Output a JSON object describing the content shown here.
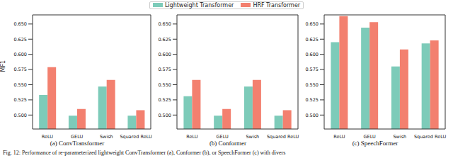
{
  "chart_data": [
    {
      "type": "bar",
      "title": "(a) ConvTransformer",
      "y_label": "MF1",
      "legend": "top",
      "categories": [
        "ReLU",
        "GELU",
        "Swish",
        "Squared ReLU"
      ],
      "series": [
        {
          "name": "Lightweight Transformer",
          "color": "#7dcbb9",
          "values": [
            0.533,
            0.499,
            0.547,
            0.499
          ]
        },
        {
          "name": "HRF Transformer",
          "color": "#f3806f",
          "values": [
            0.579,
            0.51,
            0.558,
            0.508
          ]
        }
      ],
      "ylim": [
        0.477,
        0.665
      ],
      "yticks": [
        {
          "value": 0.5,
          "label": "0.500"
        },
        {
          "value": 0.525,
          "label": "0.525"
        },
        {
          "value": 0.55,
          "label": "0.550"
        },
        {
          "value": 0.575,
          "label": "0.575"
        },
        {
          "value": 0.6,
          "label": "0.600"
        },
        {
          "value": 0.625,
          "label": "0.625"
        },
        {
          "value": 0.65,
          "label": "0.650"
        }
      ]
    },
    {
      "type": "bar",
      "title": "(b) Conformer",
      "categories": [
        "ReLU",
        "GELU",
        "Swish",
        "Squared ReLU"
      ],
      "series": [
        {
          "name": "Lightweight Transformer",
          "color": "#7dcbb9",
          "values": [
            0.531,
            0.499,
            0.547,
            0.499
          ]
        },
        {
          "name": "HRF Transformer",
          "color": "#f3806f",
          "values": [
            0.558,
            0.51,
            0.558,
            0.508
          ]
        }
      ],
      "ylim": [
        0.477,
        0.665
      ],
      "yticks": [
        {
          "value": 0.5,
          "label": "0.500"
        },
        {
          "value": 0.525,
          "label": "0.525"
        },
        {
          "value": 0.55,
          "label": "0.550"
        },
        {
          "value": 0.575,
          "label": "0.575"
        },
        {
          "value": 0.6,
          "label": "0.600"
        },
        {
          "value": 0.625,
          "label": "0.625"
        },
        {
          "value": 0.65,
          "label": "0.650"
        }
      ]
    },
    {
      "type": "bar",
      "title": "(c) SpeechFormer",
      "categories": [
        "ReLU",
        "GELU",
        "Swish",
        "Squared ReLU"
      ],
      "series": [
        {
          "name": "Lightweight Transformer",
          "color": "#7dcbb9",
          "values": [
            0.62,
            0.644,
            0.58,
            0.618
          ]
        },
        {
          "name": "HRF Transformer",
          "color": "#f3806f",
          "values": [
            0.663,
            0.653,
            0.608,
            0.623
          ]
        }
      ],
      "ylim": [
        0.477,
        0.665
      ],
      "yticks": [
        {
          "value": 0.5,
          "label": "0.500"
        },
        {
          "value": 0.525,
          "label": "0.525"
        },
        {
          "value": 0.55,
          "label": "0.550"
        },
        {
          "value": 0.575,
          "label": "0.575"
        },
        {
          "value": 0.6,
          "label": "0.600"
        },
        {
          "value": 0.625,
          "label": "0.625"
        },
        {
          "value": 0.65,
          "label": "0.650"
        }
      ]
    }
  ],
  "caption": "Fig. 12: Performance of re-parameterized lightweight ConvTransformer (a), Conformer (b), or SpeechFormer (c) with divers"
}
